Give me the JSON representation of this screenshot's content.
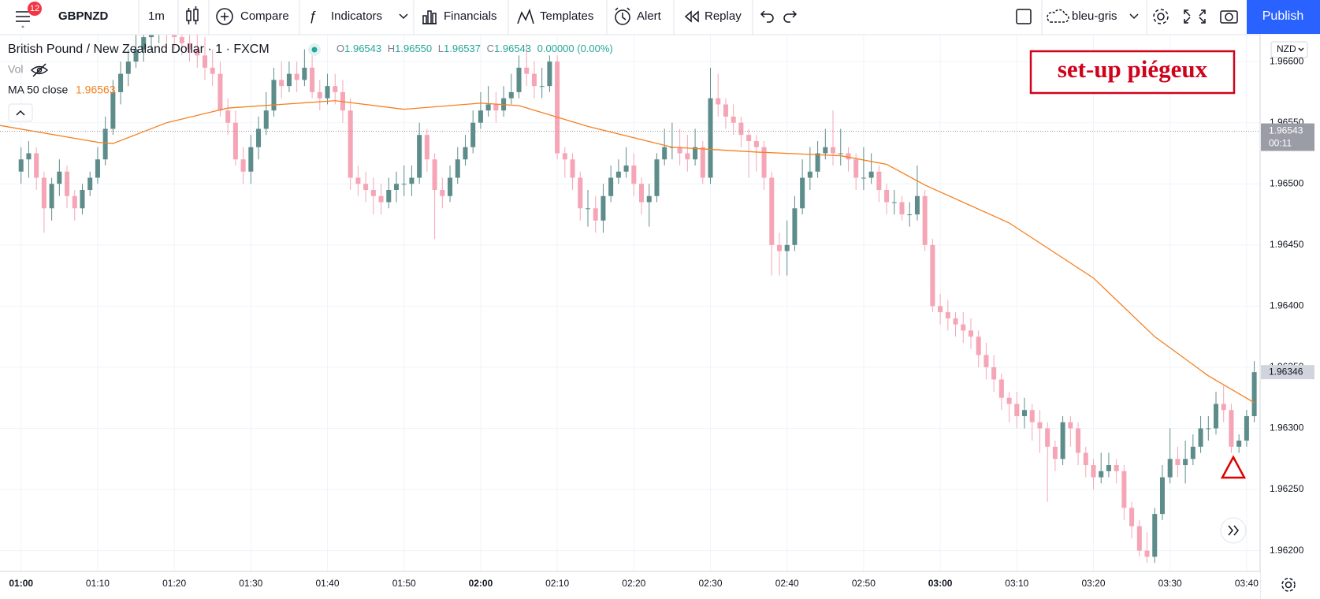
{
  "toolbar": {
    "notifications": "12",
    "symbol": "GBPNZD",
    "interval": "1m",
    "buttons": [
      "Compare",
      "Indicators",
      "Financials",
      "Templates",
      "Alert",
      "Replay"
    ],
    "layout": "bleu-gris",
    "publish": "Publish"
  },
  "legend": {
    "symbol": "British Pound / New Zealand Dollar · 1 · FXCM",
    "ohlc": [
      {
        "key": "O",
        "value": "1.96543"
      },
      {
        "key": "H",
        "value": "1.96550"
      },
      {
        "key": "L",
        "value": "1.96537"
      },
      {
        "key": "C",
        "value": "1.96543"
      }
    ],
    "change": "0.00000 (0.00%)",
    "vol": "Vol",
    "ma_name": "MA 50 close",
    "ma_value": "1.96563"
  },
  "chart_data": {
    "type": "candlestick",
    "currency": "NZD",
    "annotation": "set-up piégeux",
    "up_color": "#5d8d8b",
    "down_color": "#f5a5b6",
    "grid": true,
    "xlim": [
      -2.75,
      161.76
    ],
    "ylim": [
      1.96183,
      1.96622
    ],
    "xticks": [
      {
        "value": 0,
        "label": "01:00"
      },
      {
        "value": 10,
        "label": "01:10"
      },
      {
        "value": 20,
        "label": "01:20"
      },
      {
        "value": 30,
        "label": "01:30"
      },
      {
        "value": 40,
        "label": "01:40"
      },
      {
        "value": 50,
        "label": "01:50"
      },
      {
        "value": 60,
        "label": "02:00"
      },
      {
        "value": 70,
        "label": "02:10"
      },
      {
        "value": 80,
        "label": "02:20"
      },
      {
        "value": 90,
        "label": "02:30"
      },
      {
        "value": 100,
        "label": "02:40"
      },
      {
        "value": 110,
        "label": "02:50"
      },
      {
        "value": 120,
        "label": "03:00"
      },
      {
        "value": 130,
        "label": "03:10"
      },
      {
        "value": 140,
        "label": "03:20"
      },
      {
        "value": 150,
        "label": "03:30"
      },
      {
        "value": 160,
        "label": "03:40"
      }
    ],
    "yticks": [
      {
        "value": 1.962,
        "label": "1.96200"
      },
      {
        "value": 1.9625,
        "label": "1.96250"
      },
      {
        "value": 1.963,
        "label": "1.96300"
      },
      {
        "value": 1.9635,
        "label": "1.96350"
      },
      {
        "value": 1.964,
        "label": "1.96400"
      },
      {
        "value": 1.9645,
        "label": "1.96450"
      },
      {
        "value": 1.965,
        "label": "1.96500"
      },
      {
        "value": 1.9655,
        "label": "1.96550"
      },
      {
        "value": 1.966,
        "label": "1.96600"
      }
    ],
    "open": [
      1.9651,
      1.9652,
      1.96525,
      1.96505,
      1.9648,
      1.965,
      1.9651,
      1.9649,
      1.9648,
      1.96495,
      1.96505,
      1.9652,
      1.96545,
      1.96575,
      1.9659,
      1.966,
      1.9661,
      1.9662,
      1.96625,
      1.9663,
      1.96625,
      1.9662,
      1.96615,
      1.9661,
      1.96605,
      1.96595,
      1.9659,
      1.9656,
      1.9655,
      1.9652,
      1.9651,
      1.9653,
      1.96545,
      1.9656,
      1.96585,
      1.9658,
      1.9659,
      1.96585,
      1.96595,
      1.96575,
      1.9657,
      1.9658,
      1.96575,
      1.9656,
      1.96505,
      1.965,
      1.96495,
      1.9649,
      1.96485,
      1.96495,
      1.965,
      1.965,
      1.96505,
      1.9654,
      1.9652,
      1.96495,
      1.9649,
      1.96505,
      1.9652,
      1.9653,
      1.9655,
      1.9656,
      1.96565,
      1.9656,
      1.9657,
      1.96575,
      1.96595,
      1.9659,
      1.9658,
      1.9658,
      1.966,
      1.96525,
      1.9652,
      1.96505,
      1.9648,
      1.9648,
      1.9647,
      1.9649,
      1.96505,
      1.9651,
      1.96515,
      1.965,
      1.96485,
      1.9649,
      1.9652,
      1.9653,
      1.9653,
      1.96525,
      1.9652,
      1.9653,
      1.96505,
      1.9657,
      1.96565,
      1.96555,
      1.9655,
      1.9654,
      1.96535,
      1.9653,
      1.96505,
      1.9645,
      1.96445,
      1.9645,
      1.9648,
      1.96505,
      1.9651,
      1.96525,
      1.9653,
      1.96525,
      1.96525,
      1.9652,
      1.96505,
      1.96505,
      1.9651,
      1.96495,
      1.96485,
      1.96485,
      1.96475,
      1.96475,
      1.9649,
      1.9645,
      1.964,
      1.96395,
      1.9639,
      1.96385,
      1.9638,
      1.96375,
      1.9636,
      1.9635,
      1.9634,
      1.96325,
      1.9632,
      1.9631,
      1.96315,
      1.96305,
      1.963,
      1.96285,
      1.96275,
      1.96305,
      1.963,
      1.9628,
      1.9627,
      1.9626,
      1.96265,
      1.9627,
      1.96265,
      1.96235,
      1.9622,
      1.962,
      1.96195,
      1.9623,
      1.9626,
      1.96275,
      1.9627,
      1.96275,
      1.96285,
      1.963,
      1.963,
      1.9632,
      1.96315,
      1.96285,
      1.9629,
      1.9631
    ],
    "high": [
      1.9653,
      1.96535,
      1.9653,
      1.9651,
      1.96505,
      1.9652,
      1.96515,
      1.96495,
      1.965,
      1.9651,
      1.9653,
      1.96555,
      1.96585,
      1.966,
      1.9661,
      1.96625,
      1.9664,
      1.9665,
      1.9665,
      1.96645,
      1.9664,
      1.96635,
      1.9663,
      1.96625,
      1.9662,
      1.9661,
      1.966,
      1.9657,
      1.9656,
      1.9653,
      1.9654,
      1.96555,
      1.96575,
      1.96595,
      1.966,
      1.966,
      1.966,
      1.9661,
      1.96605,
      1.96585,
      1.9659,
      1.9659,
      1.96585,
      1.9657,
      1.96515,
      1.9651,
      1.96505,
      1.965,
      1.96505,
      1.9651,
      1.96515,
      1.96515,
      1.9655,
      1.96545,
      1.96525,
      1.96505,
      1.96515,
      1.9653,
      1.9654,
      1.9656,
      1.96575,
      1.9658,
      1.96575,
      1.9658,
      1.9659,
      1.96605,
      1.96615,
      1.966,
      1.96595,
      1.96605,
      1.96605,
      1.9653,
      1.96525,
      1.9651,
      1.96495,
      1.9649,
      1.965,
      1.96515,
      1.9652,
      1.9653,
      1.96525,
      1.96505,
      1.965,
      1.96525,
      1.96545,
      1.9655,
      1.96545,
      1.9654,
      1.96545,
      1.96535,
      1.96595,
      1.9659,
      1.9657,
      1.96565,
      1.96555,
      1.96545,
      1.9654,
      1.96535,
      1.9651,
      1.9646,
      1.9647,
      1.9649,
      1.9652,
      1.9653,
      1.96535,
      1.96545,
      1.9656,
      1.96545,
      1.9653,
      1.96525,
      1.9653,
      1.96525,
      1.96515,
      1.965,
      1.96495,
      1.9649,
      1.96485,
      1.96515,
      1.96495,
      1.96455,
      1.9641,
      1.96405,
      1.96395,
      1.96395,
      1.9639,
      1.9638,
      1.9637,
      1.9636,
      1.96345,
      1.9633,
      1.9633,
      1.96325,
      1.9632,
      1.96315,
      1.96305,
      1.9629,
      1.9631,
      1.9631,
      1.96305,
      1.96285,
      1.96275,
      1.9628,
      1.9628,
      1.96275,
      1.9627,
      1.9624,
      1.96225,
      1.96215,
      1.96235,
      1.9627,
      1.963,
      1.96285,
      1.9629,
      1.96295,
      1.9631,
      1.9631,
      1.9633,
      1.96335,
      1.9632,
      1.96295,
      1.96315,
      1.96355
    ],
    "low": [
      1.965,
      1.96505,
      1.96495,
      1.9646,
      1.9647,
      1.9649,
      1.9648,
      1.9647,
      1.96475,
      1.9649,
      1.965,
      1.96515,
      1.9654,
      1.96565,
      1.9658,
      1.96595,
      1.966,
      1.9661,
      1.96615,
      1.96615,
      1.9661,
      1.96605,
      1.966,
      1.96595,
      1.96585,
      1.9658,
      1.96555,
      1.9654,
      1.96515,
      1.965,
      1.965,
      1.9652,
      1.9654,
      1.96555,
      1.9657,
      1.96575,
      1.96575,
      1.9658,
      1.9657,
      1.9656,
      1.96565,
      1.96565,
      1.9655,
      1.96495,
      1.9649,
      1.96485,
      1.96475,
      1.96475,
      1.9648,
      1.96485,
      1.9649,
      1.9649,
      1.965,
      1.9651,
      1.96455,
      1.9648,
      1.96485,
      1.965,
      1.96515,
      1.96525,
      1.96545,
      1.96555,
      1.9655,
      1.96555,
      1.96565,
      1.9657,
      1.9658,
      1.9657,
      1.9657,
      1.96575,
      1.9652,
      1.96505,
      1.96495,
      1.9647,
      1.96465,
      1.9646,
      1.9646,
      1.96485,
      1.965,
      1.96505,
      1.9649,
      1.96475,
      1.96465,
      1.96485,
      1.96515,
      1.9652,
      1.96515,
      1.9651,
      1.96515,
      1.965,
      1.965,
      1.96555,
      1.96545,
      1.9654,
      1.9653,
      1.96505,
      1.9651,
      1.96495,
      1.96425,
      1.96425,
      1.96425,
      1.96445,
      1.96475,
      1.96495,
      1.96505,
      1.9652,
      1.96515,
      1.96515,
      1.9651,
      1.96495,
      1.96495,
      1.965,
      1.96485,
      1.96475,
      1.96475,
      1.9647,
      1.96465,
      1.9647,
      1.96445,
      1.96395,
      1.96385,
      1.9638,
      1.96375,
      1.9637,
      1.96365,
      1.9635,
      1.9634,
      1.9633,
      1.96315,
      1.96305,
      1.963,
      1.963,
      1.9629,
      1.9628,
      1.9624,
      1.96265,
      1.9627,
      1.96285,
      1.9627,
      1.9626,
      1.9625,
      1.96255,
      1.9626,
      1.96255,
      1.96225,
      1.9621,
      1.96195,
      1.9619,
      1.9619,
      1.96225,
      1.96255,
      1.9626,
      1.96255,
      1.9627,
      1.9628,
      1.9629,
      1.96295,
      1.96305,
      1.9628,
      1.9628,
      1.96285,
      1.96305
    ],
    "close": [
      1.9652,
      1.96525,
      1.96505,
      1.9648,
      1.965,
      1.9651,
      1.9649,
      1.9648,
      1.96495,
      1.96505,
      1.9652,
      1.96545,
      1.96575,
      1.9659,
      1.966,
      1.9661,
      1.9662,
      1.96625,
      1.9663,
      1.96625,
      1.9662,
      1.96615,
      1.9661,
      1.96605,
      1.96595,
      1.9659,
      1.9656,
      1.9655,
      1.9652,
      1.9651,
      1.9653,
      1.96545,
      1.9656,
      1.96585,
      1.9658,
      1.9659,
      1.96585,
      1.96595,
      1.96575,
      1.9657,
      1.9658,
      1.96575,
      1.9656,
      1.96505,
      1.965,
      1.96495,
      1.9649,
      1.96485,
      1.96495,
      1.965,
      1.965,
      1.96505,
      1.9654,
      1.9652,
      1.96495,
      1.9649,
      1.96505,
      1.9652,
      1.9653,
      1.9655,
      1.9656,
      1.96565,
      1.9656,
      1.9657,
      1.96575,
      1.96595,
      1.9659,
      1.9658,
      1.9658,
      1.966,
      1.96525,
      1.9652,
      1.96505,
      1.9648,
      1.9648,
      1.9647,
      1.9649,
      1.96505,
      1.9651,
      1.96515,
      1.965,
      1.96485,
      1.9649,
      1.9652,
      1.9653,
      1.9653,
      1.96525,
      1.9652,
      1.9653,
      1.96505,
      1.9657,
      1.96565,
      1.96555,
      1.9655,
      1.9654,
      1.96535,
      1.9653,
      1.96505,
      1.9645,
      1.96445,
      1.9645,
      1.9648,
      1.96505,
      1.9651,
      1.96525,
      1.9653,
      1.96525,
      1.96525,
      1.9652,
      1.96505,
      1.96505,
      1.9651,
      1.96495,
      1.96485,
      1.96485,
      1.96475,
      1.96475,
      1.9649,
      1.9645,
      1.964,
      1.96395,
      1.9639,
      1.96385,
      1.9638,
      1.96375,
      1.9636,
      1.9635,
      1.9634,
      1.96325,
      1.9632,
      1.9631,
      1.96315,
      1.96305,
      1.963,
      1.96285,
      1.96275,
      1.96305,
      1.963,
      1.9628,
      1.9627,
      1.9626,
      1.96265,
      1.9627,
      1.96265,
      1.96235,
      1.9622,
      1.962,
      1.96195,
      1.9623,
      1.9626,
      1.96275,
      1.9627,
      1.96275,
      1.96285,
      1.963,
      1.963,
      1.9632,
      1.96315,
      1.96285,
      1.9629,
      1.9631,
      1.96346
    ],
    "ma": {
      "name": "MA 50 close",
      "color": "#f57f1f",
      "x": [
        -3,
        10,
        12,
        19,
        27,
        41,
        50,
        60,
        65,
        74,
        85,
        96,
        107,
        113,
        118,
        129,
        140,
        148,
        155,
        161
      ],
      "values": [
        1.96548,
        1.96534,
        1.96533,
        1.9655,
        1.96562,
        1.96568,
        1.96561,
        1.96566,
        1.96564,
        1.96547,
        1.9653,
        1.96526,
        1.96523,
        1.96516,
        1.96499,
        1.96468,
        1.96423,
        1.96375,
        1.96343,
        1.96321
      ]
    },
    "crosshair_price": {
      "value": 1.96543,
      "label": "1.96543",
      "countdown": "00:11"
    },
    "last_price": {
      "value": 1.96346,
      "label": "1.96346"
    }
  }
}
